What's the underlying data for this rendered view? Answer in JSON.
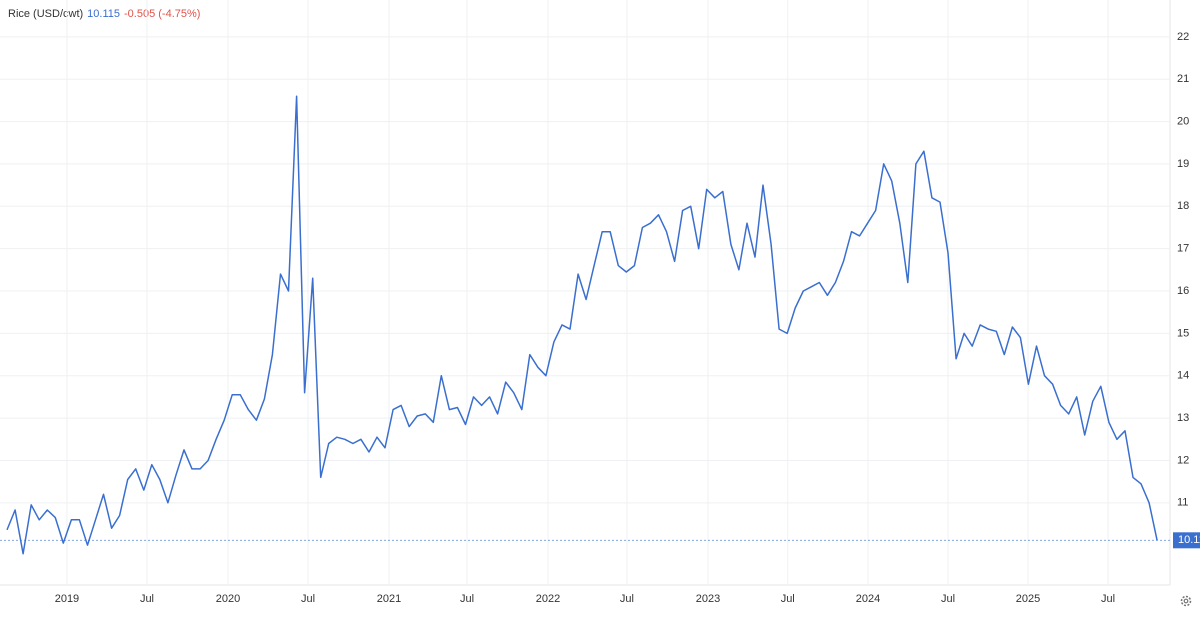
{
  "chart_data": {
    "type": "line",
    "title": "Rice (USD/cwt)",
    "last": 10.115,
    "change": "-0.505 (-4.75%)",
    "series": [
      {
        "name": "Rice (USD/cwt)",
        "color": "#3a6fcf",
        "values": [
          10.36,
          10.83,
          9.8,
          10.95,
          10.6,
          10.83,
          10.65,
          10.05,
          10.6,
          10.6,
          10.0,
          10.6,
          11.2,
          10.4,
          10.7,
          11.55,
          11.8,
          11.3,
          11.9,
          11.55,
          11.0,
          11.65,
          12.25,
          11.8,
          11.8,
          12.0,
          12.5,
          12.95,
          13.55,
          13.55,
          13.2,
          12.95,
          13.45,
          14.5,
          16.4,
          16.0,
          20.6,
          13.6,
          16.3,
          11.6,
          12.4,
          12.55,
          12.5,
          12.4,
          12.5,
          12.2,
          12.55,
          12.3,
          13.2,
          13.3,
          12.8,
          13.05,
          13.1,
          12.9,
          14.0,
          13.2,
          13.25,
          12.85,
          13.5,
          13.3,
          13.5,
          13.1,
          13.85,
          13.6,
          13.2,
          14.5,
          14.2,
          14.0,
          14.8,
          15.2,
          15.1,
          16.4,
          15.8,
          16.6,
          17.4,
          17.4,
          16.6,
          16.45,
          16.6,
          17.5,
          17.6,
          17.8,
          17.4,
          16.7,
          17.9,
          18.0,
          17.0,
          18.4,
          18.2,
          18.35,
          17.1,
          16.5,
          17.6,
          16.8,
          18.5,
          17.1,
          15.1,
          15.0,
          15.6,
          16.0,
          16.1,
          16.2,
          15.9,
          16.2,
          16.7,
          17.4,
          17.3,
          17.6,
          17.9,
          19.0,
          18.6,
          17.6,
          16.2,
          19.0,
          19.3,
          18.2,
          18.1,
          16.9,
          14.4,
          15.0,
          14.7,
          15.2,
          15.1,
          15.05,
          14.5,
          15.15,
          14.9,
          13.8,
          14.7,
          14.0,
          13.8,
          13.3,
          13.1,
          13.5,
          12.6,
          13.4,
          13.75,
          12.9,
          12.5,
          12.7,
          11.6,
          11.45,
          11.0,
          10.115
        ]
      }
    ],
    "xlim": [
      -0.875,
      144.6
    ],
    "xticks": [
      {
        "value": 7.45,
        "label": "2019"
      },
      {
        "value": 17.4,
        "label": "Jul"
      },
      {
        "value": 27.47,
        "label": "2020"
      },
      {
        "value": 37.42,
        "label": "Jul"
      },
      {
        "value": 47.49,
        "label": "2021"
      },
      {
        "value": 57.19,
        "label": "Jul"
      },
      {
        "value": 67.26,
        "label": "2022"
      },
      {
        "value": 77.08,
        "label": "Jul"
      },
      {
        "value": 87.16,
        "label": "2023"
      },
      {
        "value": 97.07,
        "label": "Jul"
      },
      {
        "value": 107.05,
        "label": "2024"
      },
      {
        "value": 117.0,
        "label": "Jul"
      },
      {
        "value": 126.95,
        "label": "2025"
      },
      {
        "value": 136.9,
        "label": "Jul"
      }
    ],
    "ylim": [
      9.06,
      22.87
    ],
    "yticks": [
      11,
      12,
      13,
      14,
      15,
      16,
      17,
      18,
      19,
      20,
      21,
      22
    ],
    "grid": true
  }
}
